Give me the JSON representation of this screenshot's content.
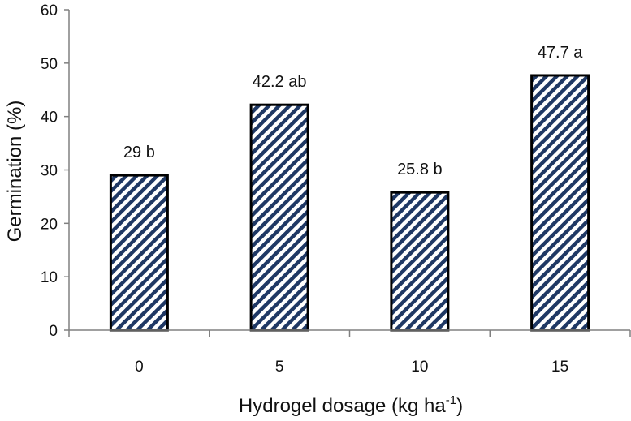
{
  "chart_data": {
    "type": "bar",
    "categories": [
      "0",
      "5",
      "10",
      "15"
    ],
    "values": [
      29,
      42.2,
      25.8,
      47.7
    ],
    "data_labels": [
      "29 b",
      "42.2 ab",
      "25.8 b",
      "47.7 a"
    ],
    "title": "",
    "xlabel": "Hydrogel dosage (kg ha",
    "xlabel_superscript": "-1",
    "xlabel_suffix": ")",
    "ylabel": "Germination (%)",
    "ylim": [
      0,
      60
    ],
    "yticks": [
      "0",
      "10",
      "20",
      "30",
      "40",
      "50",
      "60"
    ],
    "grid": false,
    "legend": "none",
    "bar_pattern": "diagonal-stripes",
    "bar_color": "#1f3864",
    "bar_edge_color": "#000000"
  }
}
